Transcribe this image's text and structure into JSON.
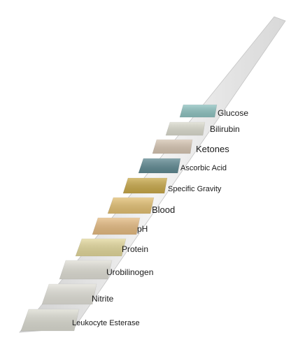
{
  "pads": [
    {
      "label": "Glucose",
      "color": "#8fc3c1"
    },
    {
      "label": "Bilirubin",
      "color": "#dcdccf"
    },
    {
      "label": "Ketones",
      "color": "#d7c6b3"
    },
    {
      "label": "Ascorbic Acid",
      "color": "#5f8992"
    },
    {
      "label": "Specific Gravity",
      "color": "#c9a94a"
    },
    {
      "label": "Blood",
      "color": "#e3c073"
    },
    {
      "label": "pH",
      "color": "#e5bb82"
    },
    {
      "label": "Protein",
      "color": "#e3d89c"
    },
    {
      "label": "Urobilinogen",
      "color": "#e0dfd6"
    },
    {
      "label": "Nitrite",
      "color": "#e2e1d9"
    },
    {
      "label": "Leukocyte Esterase",
      "color": "#dcdcd2"
    }
  ]
}
